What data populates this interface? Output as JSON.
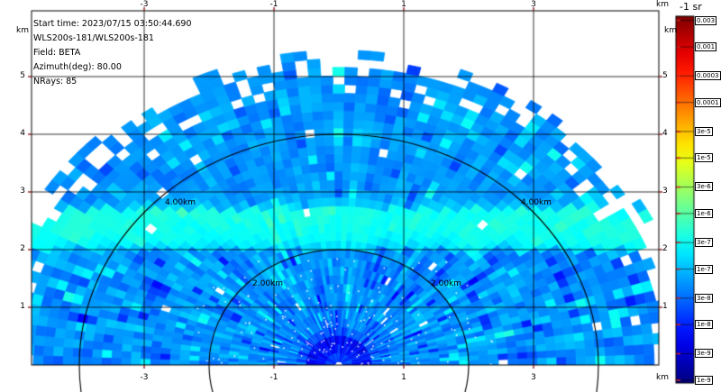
{
  "info_panel": {
    "lines": [
      "Start time: 2023/07/15 03:50:44.690",
      "WLS200s-181/WLS200s-181",
      "Field: BETA",
      "Azimuth(deg): 80.00",
      "NRays: 85"
    ]
  },
  "axes": {
    "unit": "km",
    "x_ticks": [
      "-3",
      "-1",
      "1",
      "3"
    ],
    "y_ticks": [
      "1",
      "2",
      "3",
      "4",
      "5"
    ]
  },
  "rings": {
    "inner_label": "2.00km",
    "outer_label": "4.00km"
  },
  "colorbar": {
    "title": "-1 sr",
    "ticks": [
      "0.003",
      "0.001",
      "0.0003",
      "0.0001",
      "3e-5",
      "1e-5",
      "3e-6",
      "1e-6",
      "3e-7",
      "1e-7",
      "3e-8",
      "1e-8",
      "3e-9",
      "1e-9"
    ]
  },
  "chart_data": {
    "type": "heatmap",
    "subtype": "polar-rhi-lidar-scan",
    "field": "BETA",
    "units_label": "-1 sr",
    "start_time": "2023/07/15 03:50:44.690",
    "instrument": "WLS200s-181/WLS200s-181",
    "azimuth_deg": 80.0,
    "n_rays": 85,
    "elevation_span_deg": [
      0,
      180
    ],
    "range_max_km": 5.4,
    "range_gate_km": 0.15,
    "range_rings_km": [
      2.0,
      4.0
    ],
    "x_axis": {
      "label": "km",
      "ticks": [
        -3,
        -1,
        1,
        3
      ],
      "range": [
        -4.74,
        4.93
      ]
    },
    "y_axis": {
      "label": "km",
      "ticks": [
        1,
        2,
        3,
        4,
        5
      ],
      "range": [
        0,
        6.14
      ]
    },
    "grid": true,
    "colormap": "jet",
    "color_scale": {
      "type": "log",
      "min": 1e-09,
      "max": 0.003,
      "tick_values": [
        0.003,
        0.001,
        0.0003,
        0.0001,
        3e-05,
        1e-05,
        3e-06,
        1e-06,
        3e-07,
        1e-07,
        3e-08,
        1e-08,
        3e-09,
        1e-09
      ]
    },
    "field_structure": {
      "background_beta": 1.3e-07,
      "aerosol_layer": {
        "altitude_km": [
          2.0,
          2.72
        ],
        "beta": 6e-07
      },
      "lower_mixed_layer": {
        "altitude_km": [
          0,
          2.0
        ],
        "beta_range": [
          3e-08,
          8e-07
        ]
      },
      "near_range_dark_fan_km": 0.5,
      "texture": "speckled random cells"
    },
    "seed": 20230715
  }
}
